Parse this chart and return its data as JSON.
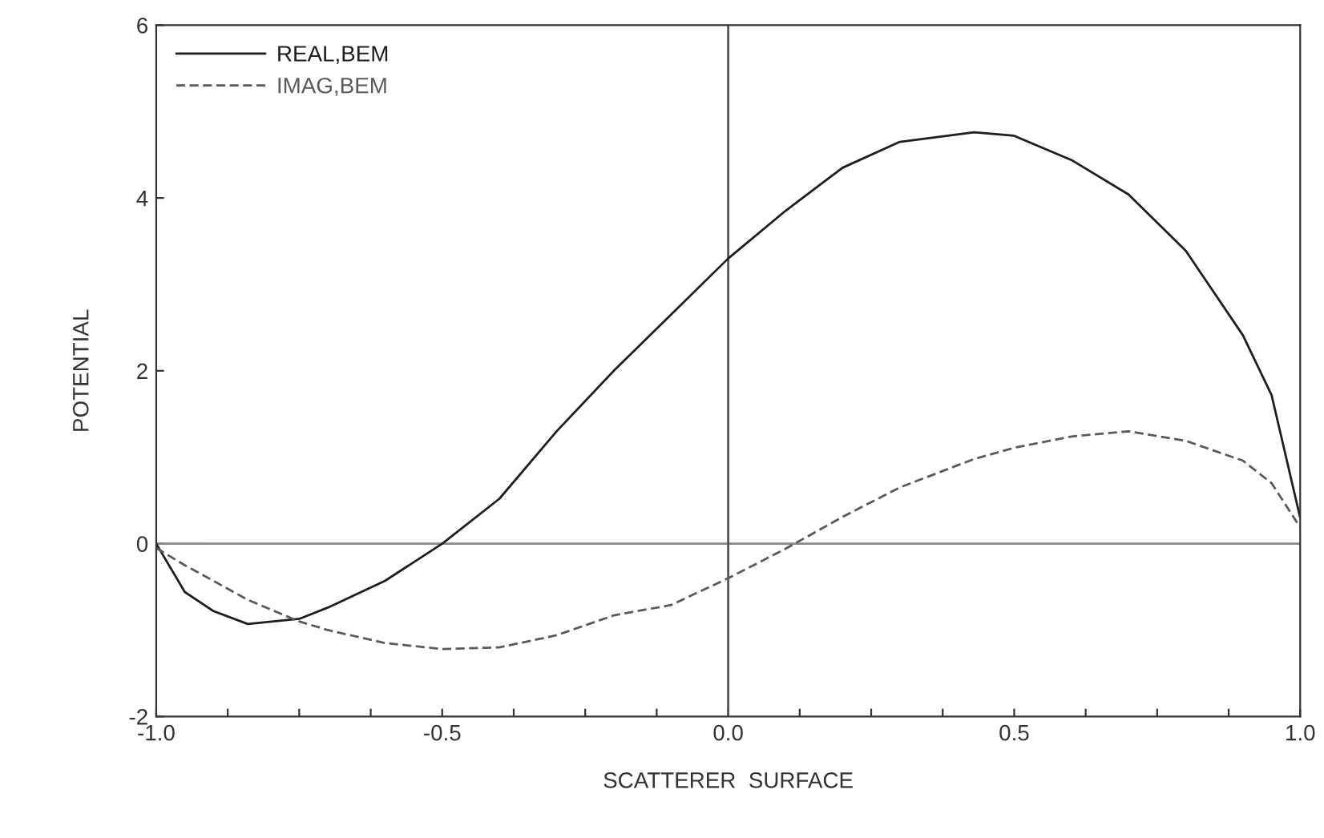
{
  "chart_data": {
    "type": "line",
    "xlabel": "SCATTERER  SURFACE",
    "ylabel": "POTENTIAL",
    "xlim": [
      -1.0,
      1.0
    ],
    "ylim": [
      -2,
      6
    ],
    "xticks": [
      {
        "value": -1.0,
        "label": "-1.0"
      },
      {
        "value": -0.875,
        "label": null
      },
      {
        "value": -0.75,
        "label": null
      },
      {
        "value": -0.625,
        "label": null
      },
      {
        "value": -0.5,
        "label": "-0.5"
      },
      {
        "value": -0.375,
        "label": null
      },
      {
        "value": -0.25,
        "label": null
      },
      {
        "value": -0.125,
        "label": null
      },
      {
        "value": 0.0,
        "label": "0.0"
      },
      {
        "value": 0.125,
        "label": null
      },
      {
        "value": 0.25,
        "label": null
      },
      {
        "value": 0.375,
        "label": null
      },
      {
        "value": 0.5,
        "label": "0.5"
      },
      {
        "value": 0.625,
        "label": null
      },
      {
        "value": 0.75,
        "label": null
      },
      {
        "value": 0.875,
        "label": null
      },
      {
        "value": 1.0,
        "label": "1.0"
      }
    ],
    "yticks": [
      -2,
      0,
      2,
      4,
      6
    ],
    "x": [
      -1.0,
      -0.95,
      -0.9,
      -0.84,
      -0.75,
      -0.7,
      -0.6,
      -0.5,
      -0.4,
      -0.3,
      -0.2,
      -0.1,
      0.0,
      0.1,
      0.2,
      0.3,
      0.43,
      0.5,
      0.6,
      0.7,
      0.8,
      0.9,
      0.95,
      1.0
    ],
    "series": [
      {
        "name": "REAL,BEM",
        "color": "#1e1e1e",
        "line_style": "solid",
        "values": [
          0.0,
          -0.56,
          -0.78,
          -0.93,
          -0.87,
          -0.74,
          -0.43,
          0.0,
          0.52,
          1.3,
          2.0,
          2.65,
          3.3,
          3.85,
          4.35,
          4.65,
          4.76,
          4.72,
          4.44,
          4.04,
          3.39,
          2.41,
          1.72,
          0.3
        ]
      },
      {
        "name": "IMAG,BEM",
        "color": "#5a5a5a",
        "line_style": "dashed",
        "values": [
          -0.05,
          -0.25,
          -0.43,
          -0.65,
          -0.9,
          -1.0,
          -1.15,
          -1.22,
          -1.2,
          -1.06,
          -0.83,
          -0.71,
          -0.4,
          -0.06,
          0.31,
          0.65,
          0.98,
          1.11,
          1.24,
          1.3,
          1.19,
          0.96,
          0.7,
          0.19
        ]
      }
    ],
    "ref_lines": [
      {
        "axis": "y",
        "value": 0,
        "label": null,
        "color": "#888888"
      },
      {
        "axis": "x",
        "value": 0,
        "label": null,
        "color": "#555555"
      }
    ],
    "legend": "top left",
    "grid": false
  }
}
